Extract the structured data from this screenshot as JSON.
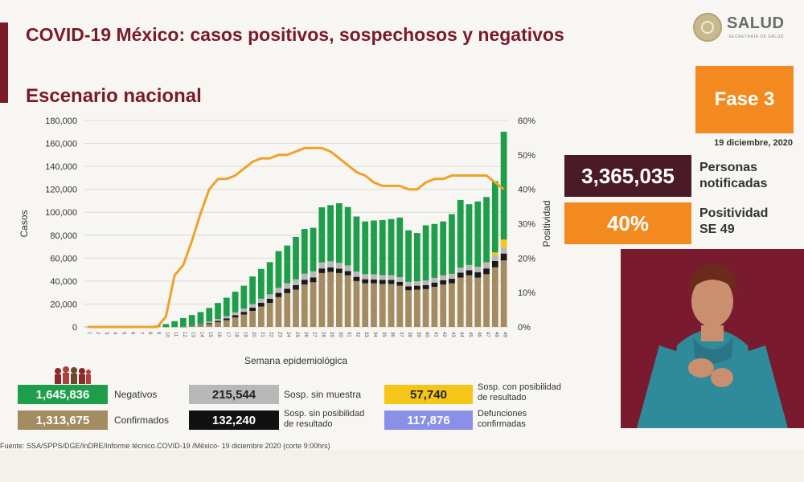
{
  "header": {
    "title": "COVID-19 México: casos positivos, sospechosos y negativos",
    "subtitle": "Escenario nacional",
    "logo_text": "SALUD",
    "logo_subtext": "SECRETARÍA DE SALUD"
  },
  "side": {
    "phase": "Fase 3",
    "date": "19 diciembre, 2020",
    "notified_value": "3,365,035",
    "notified_label_1": "Personas",
    "notified_label_2": "notificadas",
    "positivity_value": "40%",
    "positivity_label_1": "Positividad",
    "positivity_label_2": "SE 49"
  },
  "legend": {
    "negativos_value": "1,645,836",
    "negativos_label": "Negativos",
    "sin_muestra_value": "215,544",
    "sin_muestra_label": "Sosp. sin muestra",
    "con_posibilidad_value": "57,740",
    "con_posibilidad_label_1": "Sosp. con posibilidad",
    "con_posibilidad_label_2": "de resultado",
    "confirmados_value": "1,313,675",
    "confirmados_label": "Confirmados",
    "sin_posibilidad_value": "132,240",
    "sin_posibilidad_label_1": "Sosp. sin posibilidad",
    "sin_posibilidad_label_2": "de resultado",
    "defunciones_value": "117,876",
    "defunciones_label_1": "Defunciones",
    "defunciones_label_2": "confirmadas"
  },
  "footer": {
    "source": "Fuente: SSA/SPPS/DGE/InDRE/Informe técnico.COVID-19 /México- 19 diciembre 2020 (corte 9:00hrs)"
  },
  "colors": {
    "confirmados": "#a38b62",
    "sin_posibilidad": "#1a1a1a",
    "sin_muestra": "#b8b8b8",
    "con_posibilidad": "#f5c518",
    "negativos": "#1e9e4a",
    "defunciones": "#8a8fe8",
    "positividad": "#f0a12a"
  },
  "chart_data": {
    "type": "bar",
    "stacked": true,
    "xlabel": "Semana epidemiológica",
    "ylabel": "Casos",
    "y2label": "Positividad",
    "ylim": [
      0,
      180000
    ],
    "y2lim": [
      0,
      60
    ],
    "yticks": [
      "0",
      "20,000",
      "40,000",
      "60,000",
      "80,000",
      "100,000",
      "120,000",
      "140,000",
      "160,000",
      "180,000"
    ],
    "y2ticks": [
      "0%",
      "10%",
      "20%",
      "30%",
      "40%",
      "50%",
      "60%"
    ],
    "categories": [
      "1",
      "2",
      "3",
      "4",
      "5",
      "6",
      "7",
      "8",
      "9",
      "10",
      "11",
      "12",
      "13",
      "14",
      "15",
      "16",
      "17",
      "18",
      "19",
      "20",
      "21",
      "22",
      "23",
      "24",
      "25",
      "26",
      "27",
      "28",
      "29",
      "30",
      "31",
      "32",
      "33",
      "34",
      "35",
      "36",
      "37",
      "38",
      "39",
      "40",
      "41",
      "42",
      "43",
      "44",
      "45",
      "46",
      "47",
      "48",
      "49"
    ],
    "series": [
      {
        "key": "confirmados",
        "values": [
          0,
          0,
          0,
          0,
          0,
          0,
          0,
          0,
          0,
          2,
          20,
          120,
          700,
          1300,
          2500,
          4100,
          5900,
          8300,
          10800,
          14000,
          17800,
          21000,
          26000,
          29500,
          32500,
          37000,
          39000,
          47000,
          48000,
          47000,
          45000,
          40000,
          38000,
          38000,
          37500,
          37500,
          36000,
          32000,
          32500,
          33000,
          35000,
          37000,
          38000,
          43000,
          45000,
          43000,
          46000,
          52000,
          58000
        ]
      },
      {
        "key": "sin_posibilidad",
        "values": [
          0,
          0,
          0,
          0,
          0,
          0,
          0,
          0,
          0,
          0,
          10,
          60,
          300,
          500,
          900,
          1200,
          1600,
          2000,
          2400,
          2800,
          3200,
          3500,
          3700,
          3800,
          4000,
          4200,
          4200,
          4000,
          4000,
          3900,
          3800,
          3700,
          3600,
          3500,
          3500,
          3500,
          3400,
          3400,
          3500,
          3600,
          3700,
          3800,
          4000,
          4300,
          4500,
          4800,
          5000,
          5500,
          6000
        ]
      },
      {
        "key": "sin_muestra",
        "values": [
          0,
          0,
          0,
          0,
          0,
          0,
          0,
          0,
          0,
          0,
          20,
          100,
          400,
          700,
          1200,
          1600,
          2000,
          2400,
          2800,
          3200,
          3600,
          4000,
          4400,
          4700,
          5000,
          5200,
          5300,
          5300,
          5200,
          5000,
          4800,
          4600,
          4400,
          4300,
          4200,
          4100,
          4000,
          3900,
          3900,
          4000,
          4100,
          4200,
          4300,
          4400,
          4500,
          4600,
          4800,
          5000,
          5200
        ]
      },
      {
        "key": "con_posibilidad",
        "values": [
          0,
          0,
          0,
          0,
          0,
          0,
          0,
          0,
          0,
          0,
          0,
          0,
          0,
          0,
          0,
          0,
          0,
          0,
          0,
          0,
          0,
          0,
          0,
          0,
          0,
          0,
          0,
          0,
          0,
          0,
          0,
          0,
          0,
          0,
          0,
          0,
          0,
          0,
          0,
          0,
          0,
          0,
          0,
          0,
          0,
          0,
          500,
          2500,
          7000
        ]
      },
      {
        "key": "negativos",
        "values": [
          200,
          300,
          400,
          400,
          500,
          600,
          700,
          900,
          1200,
          2500,
          5000,
          7500,
          9000,
          10500,
          12000,
          14000,
          16000,
          18000,
          20000,
          24000,
          26000,
          28000,
          32000,
          33000,
          37000,
          39000,
          38000,
          48000,
          49000,
          52000,
          51000,
          48000,
          46000,
          47000,
          48000,
          49000,
          52000,
          45000,
          42000,
          48000,
          47000,
          47000,
          52000,
          59000,
          53000,
          57000,
          57000,
          62000,
          94000
        ]
      }
    ],
    "positividad_pct": [
      0,
      0,
      0,
      0,
      0,
      0,
      0,
      0,
      0,
      3,
      15,
      18,
      25,
      33,
      40,
      43,
      43,
      44,
      46,
      48,
      49,
      49,
      50,
      50,
      51,
      52,
      52,
      52,
      51,
      49,
      47,
      45,
      44,
      42,
      41,
      41,
      41,
      40,
      40,
      42,
      43,
      43,
      44,
      44,
      44,
      44,
      44,
      42,
      40
    ]
  }
}
